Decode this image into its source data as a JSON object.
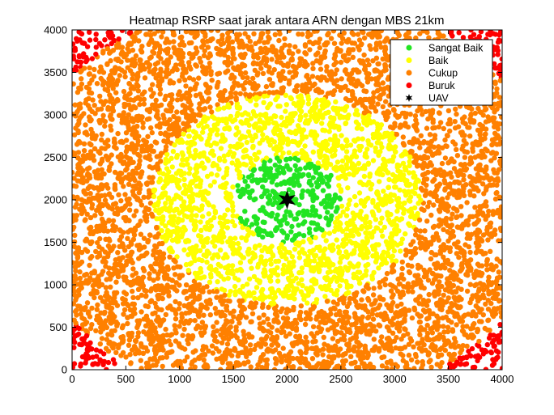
{
  "chart_data": {
    "type": "scatter",
    "title": "Heatmap RSRP saat jarak antara ARN dengan MBS 21km",
    "xlabel": "",
    "ylabel": "",
    "xlim": [
      0,
      4000
    ],
    "ylim": [
      0,
      4000
    ],
    "xticks": [
      0,
      500,
      1000,
      1500,
      2000,
      2500,
      3000,
      3500,
      4000
    ],
    "yticks": [
      0,
      500,
      1000,
      1500,
      2000,
      2500,
      3000,
      3500,
      4000
    ],
    "grid": false,
    "legend_position": "top-right",
    "uav": {
      "x": 2000,
      "y": 2000
    },
    "series": [
      {
        "name": "Sangat Baik",
        "color": "#22e522",
        "marker": "circle",
        "radius_max": 500
      },
      {
        "name": "Baik",
        "color": "#ffff00",
        "marker": "circle",
        "radius_min": 500,
        "radius_max": 1250
      },
      {
        "name": "Cukup",
        "color": "#ff8000",
        "marker": "circle",
        "radius_min": 1250,
        "radius_max": 2450
      },
      {
        "name": "Buruk",
        "color": "#ff0000",
        "marker": "circle",
        "radius_min": 2450
      },
      {
        "name": "UAV",
        "color": "#000000",
        "marker": "star"
      }
    ]
  }
}
